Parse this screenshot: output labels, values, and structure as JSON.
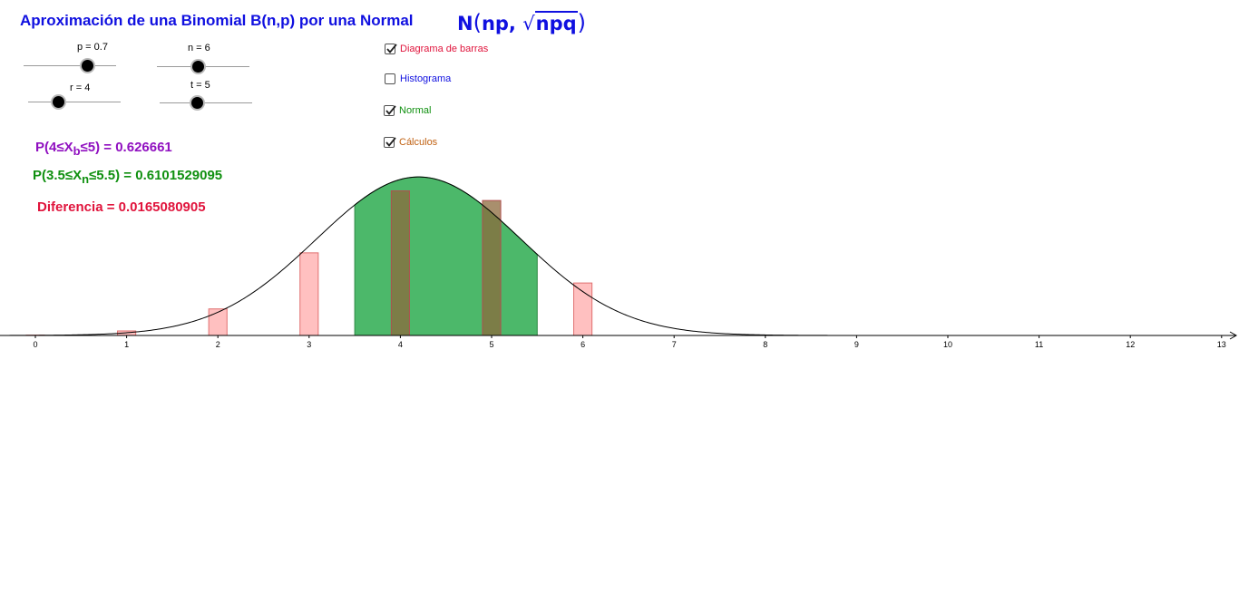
{
  "header": {
    "title": "Aproximación de una Binomial B(n,p) por una Normal",
    "formula_prefix": "N",
    "formula_args": "np, ",
    "formula_radicand": "npq"
  },
  "sliders": [
    {
      "label": "p = 0.7",
      "value": 0.7,
      "min": 0,
      "max": 1
    },
    {
      "label": "n = 6",
      "value": 6,
      "min": 1,
      "max": 13
    },
    {
      "label": "r = 4",
      "value": 4,
      "min": 0,
      "max": 13
    },
    {
      "label": "t = 5",
      "value": 5,
      "min": 0,
      "max": 13
    }
  ],
  "checkboxes": [
    {
      "label": "Diagrama de barras",
      "checked": true,
      "color": "#e0143c"
    },
    {
      "label": "Histograma",
      "checked": false,
      "color": "#1010e0"
    },
    {
      "label": "Normal",
      "checked": true,
      "color": "#109010"
    },
    {
      "label": "Cálculos",
      "checked": true,
      "color": "#c06010"
    }
  ],
  "calculations": {
    "binomial": {
      "prefix": "P(4≤X",
      "sub": "b",
      "suffix": "≤5) = 0.626661",
      "color": "#9010c0"
    },
    "normal": {
      "prefix": "P(3.5≤X",
      "sub": "n",
      "suffix": "≤5.5) = 0.6101529095",
      "color": "#109010"
    },
    "difference": {
      "text": "Diferencia = 0.0165080905",
      "color": "#e0143c"
    }
  },
  "colors": {
    "bar_fill": "#ffc0c0",
    "bar_stroke": "#e07070",
    "normal_fill": "#4cb86a",
    "curve": "#000000",
    "axis": "#000000"
  },
  "chart_data": {
    "type": "bar",
    "x": [
      0,
      1,
      2,
      3,
      4,
      5,
      6
    ],
    "values": [
      0.000729,
      0.010206,
      0.059535,
      0.18522,
      0.324135,
      0.302526,
      0.117649
    ],
    "x_ticks": [
      0,
      1,
      2,
      3,
      4,
      5,
      6,
      7,
      8,
      9,
      10,
      11,
      12,
      13
    ],
    "xlim": [
      -0.35,
      13.1
    ],
    "normal": {
      "mean": 4.2,
      "sd": 1.1225,
      "shade_from": 3.5,
      "shade_to": 5.5
    },
    "highlight_from": 4,
    "highlight_to": 5,
    "bar_width": 0.2
  }
}
